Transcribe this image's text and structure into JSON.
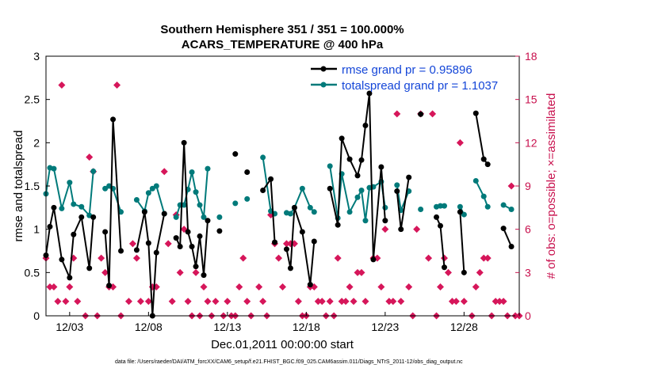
{
  "chart_data": {
    "type": "line",
    "title": "Southern Hemisphere 351 / 351 = 100.000%",
    "subtitle": "ACARS_TEMPERATURE @ 400 hPa",
    "xlabel": "Dec.01,2011 00:00:00 start",
    "ylabel": "rmse and totalspread",
    "y2label": "# of obs: o=possible; ×=assimilated",
    "xlim": [
      1.5,
      31.5
    ],
    "ylim": [
      0,
      3
    ],
    "y2lim": [
      0,
      18
    ],
    "xtick_values": [
      3,
      8,
      13,
      18,
      23,
      28
    ],
    "xtick_labels": [
      "12/03",
      "12/08",
      "12/13",
      "12/18",
      "12/23",
      "12/28"
    ],
    "ytick_labels": [
      "0",
      "0.5",
      "1",
      "1.5",
      "2",
      "2.5",
      "3"
    ],
    "y2tick_labels": [
      "0",
      "3",
      "6",
      "9",
      "12",
      "15",
      "18"
    ],
    "footer": "data file: /Users/raeder/DAI/ATM_forcXX/CAM6_setup/f.e21.FHIST_BGC.f09_025.CAM6assim.011/Diags_NTrS_2011-12/obs_diag_output.nc",
    "colors": {
      "rmse": "#000000",
      "spread": "#007a7a",
      "obs": "#d6165a",
      "legend_text": "#1446d8"
    },
    "series": [
      {
        "name": "rmse grand pr = 0.95896",
        "points": [
          [
            1.5,
            0.7
          ],
          [
            1.75,
            1.03
          ],
          [
            2.0,
            1.25
          ],
          [
            2.5,
            0.65
          ],
          [
            3.0,
            0.44
          ],
          [
            3.25,
            0.94
          ],
          [
            3.75,
            1.14
          ],
          [
            4.25,
            0.55
          ],
          [
            4.5,
            1.14
          ],
          [
            5.25,
            0.97
          ],
          [
            5.5,
            0.35
          ],
          [
            5.75,
            2.27
          ],
          [
            6.25,
            0.75
          ],
          [
            7.25,
            0.76
          ],
          [
            7.75,
            1.2
          ],
          [
            8.0,
            0.84
          ],
          [
            8.25,
            0.0
          ],
          [
            8.5,
            0.73
          ],
          [
            9.0,
            1.18
          ],
          [
            9.75,
            0.9
          ],
          [
            10.0,
            0.8
          ],
          [
            10.25,
            2.0
          ],
          [
            10.5,
            0.97
          ],
          [
            10.75,
            0.8
          ],
          [
            11.0,
            0.57
          ],
          [
            11.25,
            0.92
          ],
          [
            11.5,
            0.47
          ],
          [
            11.75,
            1.1
          ],
          [
            12.5,
            0.98
          ],
          [
            13.5,
            1.87
          ],
          [
            14.25,
            1.66
          ],
          [
            15.25,
            1.45
          ],
          [
            15.75,
            1.58
          ],
          [
            16.0,
            0.85
          ],
          [
            16.75,
            0.77
          ],
          [
            17.0,
            0.55
          ],
          [
            17.25,
            1.25
          ],
          [
            17.75,
            0.97
          ],
          [
            18.25,
            0.36
          ],
          [
            18.5,
            0.86
          ],
          [
            19.5,
            1.47
          ],
          [
            20.0,
            1.05
          ],
          [
            20.25,
            2.05
          ],
          [
            20.75,
            1.81
          ],
          [
            21.25,
            1.62
          ],
          [
            21.5,
            1.8
          ],
          [
            21.75,
            2.2
          ],
          [
            22.0,
            2.57
          ],
          [
            22.25,
            0.65
          ],
          [
            22.75,
            1.72
          ],
          [
            23.0,
            1.1
          ],
          [
            23.75,
            1.44
          ],
          [
            24.0,
            1.0
          ],
          [
            24.5,
            1.6
          ],
          [
            25.25,
            2.33
          ],
          [
            26.25,
            1.14
          ],
          [
            26.5,
            1.04
          ],
          [
            26.75,
            0.56
          ],
          [
            27.75,
            1.2
          ],
          [
            28.0,
            0.5
          ],
          [
            28.75,
            2.34
          ],
          [
            29.25,
            1.81
          ],
          [
            29.5,
            1.75
          ],
          [
            30.5,
            1.01
          ],
          [
            31.0,
            0.8
          ]
        ]
      },
      {
        "name": "totalspread grand pr = 1.1037",
        "points": [
          [
            1.5,
            1.41
          ],
          [
            1.75,
            1.71
          ],
          [
            2.0,
            1.7
          ],
          [
            2.5,
            1.24
          ],
          [
            3.0,
            1.54
          ],
          [
            3.25,
            1.29
          ],
          [
            3.75,
            1.26
          ],
          [
            4.25,
            1.16
          ],
          [
            4.5,
            1.67
          ],
          [
            5.25,
            1.47
          ],
          [
            5.5,
            1.5
          ],
          [
            5.75,
            1.47
          ],
          [
            6.25,
            1.2
          ],
          [
            7.25,
            1.34
          ],
          [
            7.75,
            1.21
          ],
          [
            8.0,
            1.42
          ],
          [
            8.25,
            1.47
          ],
          [
            8.5,
            1.5
          ],
          [
            9.0,
            1.18
          ],
          [
            9.75,
            1.14
          ],
          [
            10.0,
            1.28
          ],
          [
            10.25,
            1.28
          ],
          [
            10.5,
            1.46
          ],
          [
            10.75,
            1.66
          ],
          [
            11.0,
            1.43
          ],
          [
            11.25,
            1.28
          ],
          [
            11.5,
            1.14
          ],
          [
            11.75,
            1.7
          ],
          [
            12.5,
            1.14
          ],
          [
            13.5,
            1.3
          ],
          [
            14.25,
            1.35
          ],
          [
            15.25,
            1.83
          ],
          [
            15.75,
            1.21
          ],
          [
            16.0,
            1.18
          ],
          [
            16.75,
            1.19
          ],
          [
            17.0,
            1.18
          ],
          [
            17.25,
            1.25
          ],
          [
            17.75,
            1.47
          ],
          [
            18.25,
            1.25
          ],
          [
            18.5,
            1.2
          ],
          [
            19.5,
            1.73
          ],
          [
            20.0,
            1.13
          ],
          [
            20.25,
            1.64
          ],
          [
            20.75,
            1.2
          ],
          [
            21.25,
            1.37
          ],
          [
            21.5,
            1.45
          ],
          [
            21.75,
            1.1
          ],
          [
            22.0,
            1.48
          ],
          [
            22.25,
            1.49
          ],
          [
            22.75,
            1.55
          ],
          [
            23.0,
            1.25
          ],
          [
            23.75,
            1.51
          ],
          [
            24.0,
            1.22
          ],
          [
            24.5,
            1.44
          ],
          [
            25.25,
            1.23
          ],
          [
            26.25,
            1.26
          ],
          [
            26.5,
            1.27
          ],
          [
            26.75,
            1.27
          ],
          [
            27.75,
            1.26
          ],
          [
            28.0,
            1.17
          ],
          [
            28.75,
            1.56
          ],
          [
            29.25,
            1.38
          ],
          [
            29.5,
            1.26
          ],
          [
            30.5,
            1.28
          ],
          [
            31.0,
            1.23
          ]
        ]
      },
      {
        "name": "# of obs possible",
        "axis": "right",
        "marker": "circle",
        "points": [
          [
            1.5,
            4
          ],
          [
            1.75,
            2
          ],
          [
            2.0,
            2
          ],
          [
            2.25,
            1
          ],
          [
            2.5,
            16
          ],
          [
            2.75,
            1
          ],
          [
            3.0,
            2
          ],
          [
            3.25,
            4
          ],
          [
            3.5,
            1
          ],
          [
            4.0,
            0
          ],
          [
            4.25,
            11
          ],
          [
            4.5,
            10
          ],
          [
            4.75,
            0
          ],
          [
            5.0,
            4
          ],
          [
            5.25,
            3
          ],
          [
            5.5,
            2
          ],
          [
            5.75,
            2
          ],
          [
            6.0,
            16
          ],
          [
            6.25,
            0
          ],
          [
            6.75,
            1
          ],
          [
            7.0,
            5
          ],
          [
            7.25,
            4
          ],
          [
            7.5,
            1
          ],
          [
            8.0,
            1
          ],
          [
            8.25,
            2
          ],
          [
            8.5,
            2
          ],
          [
            9.0,
            10
          ],
          [
            9.25,
            5
          ],
          [
            9.5,
            1
          ],
          [
            9.75,
            7
          ],
          [
            10.0,
            3
          ],
          [
            10.25,
            6
          ],
          [
            10.5,
            1
          ],
          [
            10.75,
            0
          ],
          [
            11.0,
            3
          ],
          [
            11.25,
            0
          ],
          [
            11.5,
            2
          ],
          [
            11.75,
            1
          ],
          [
            12.0,
            0
          ],
          [
            12.25,
            1
          ],
          [
            12.75,
            0
          ],
          [
            13.0,
            1
          ],
          [
            13.25,
            0
          ],
          [
            13.5,
            0
          ],
          [
            13.75,
            2
          ],
          [
            14.0,
            4
          ],
          [
            14.25,
            1
          ],
          [
            14.5,
            0
          ],
          [
            15.0,
            2
          ],
          [
            15.25,
            1
          ],
          [
            15.5,
            0
          ],
          [
            15.75,
            7
          ],
          [
            16.0,
            5
          ],
          [
            16.25,
            4
          ],
          [
            16.5,
            2
          ],
          [
            16.75,
            5
          ],
          [
            17.0,
            5
          ],
          [
            17.25,
            5
          ],
          [
            17.5,
            1
          ],
          [
            17.75,
            0
          ],
          [
            18.0,
            0
          ],
          [
            18.25,
            2
          ],
          [
            18.5,
            2
          ],
          [
            18.75,
            1
          ],
          [
            19.0,
            1
          ],
          [
            19.25,
            0
          ],
          [
            19.5,
            1
          ],
          [
            19.75,
            0
          ],
          [
            20.0,
            4
          ],
          [
            20.25,
            1
          ],
          [
            20.5,
            1
          ],
          [
            20.75,
            2
          ],
          [
            21.0,
            1
          ],
          [
            21.25,
            3
          ],
          [
            21.5,
            3
          ],
          [
            21.75,
            1
          ],
          [
            22.25,
            4
          ],
          [
            22.5,
            4
          ],
          [
            22.75,
            2
          ],
          [
            23.0,
            6
          ],
          [
            23.25,
            1
          ],
          [
            23.5,
            1
          ],
          [
            23.75,
            14
          ],
          [
            24.0,
            1
          ],
          [
            24.5,
            2
          ],
          [
            24.75,
            0
          ],
          [
            25.0,
            6
          ],
          [
            25.25,
            14
          ],
          [
            25.75,
            4
          ],
          [
            26.0,
            14
          ],
          [
            26.25,
            0
          ],
          [
            26.5,
            2
          ],
          [
            26.75,
            4
          ],
          [
            27.0,
            3
          ],
          [
            27.25,
            1
          ],
          [
            27.5,
            1
          ],
          [
            27.75,
            12
          ],
          [
            28.0,
            1
          ],
          [
            28.5,
            0
          ],
          [
            28.75,
            2
          ],
          [
            29.0,
            3
          ],
          [
            29.25,
            4
          ],
          [
            29.5,
            4
          ],
          [
            29.75,
            0
          ],
          [
            30.0,
            1
          ],
          [
            30.25,
            1
          ],
          [
            30.5,
            1
          ],
          [
            30.75,
            0
          ],
          [
            31.0,
            9
          ],
          [
            31.25,
            0
          ],
          [
            31.5,
            0
          ]
        ]
      }
    ]
  }
}
